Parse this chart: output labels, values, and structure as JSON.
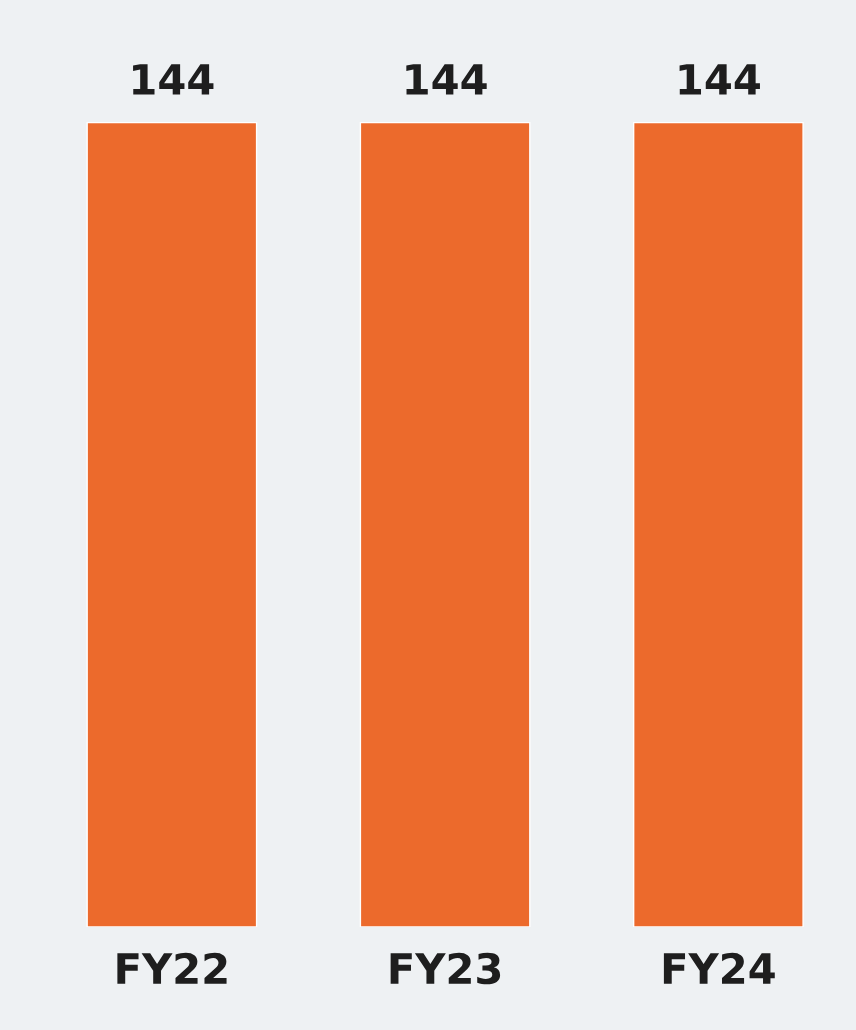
{
  "chart_data": {
    "type": "bar",
    "categories": [
      "FY22",
      "FY23",
      "FY24"
    ],
    "values": [
      144,
      144,
      144
    ],
    "color": "#ec6a2c",
    "data_labels": true,
    "grid": false,
    "legend": false
  }
}
